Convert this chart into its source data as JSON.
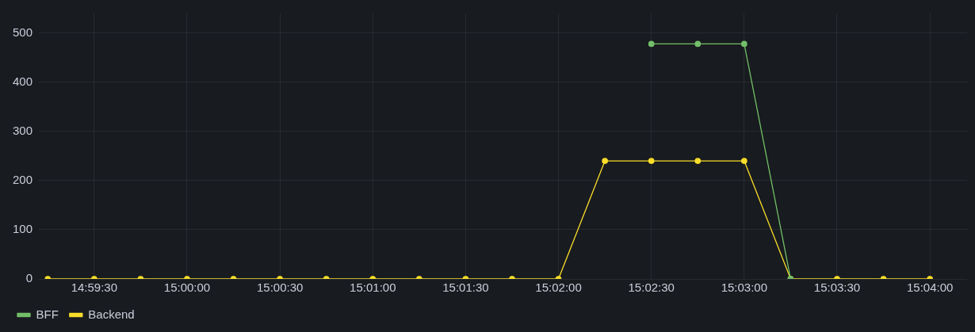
{
  "chart_data": {
    "type": "line",
    "x": [
      14.9875,
      14.991667,
      14.995833,
      15.0,
      15.004167,
      15.008333,
      15.0125,
      15.016667,
      15.020833,
      15.025,
      15.029167,
      15.033333,
      15.0375,
      15.041667,
      15.045833,
      15.05,
      15.054167,
      15.058333,
      15.0625,
      15.066667
    ],
    "series": [
      {
        "name": "BFF",
        "color": "#73bf69",
        "values": [
          null,
          null,
          null,
          null,
          null,
          null,
          null,
          null,
          null,
          null,
          null,
          null,
          null,
          478,
          478,
          478,
          0,
          null,
          null,
          null
        ]
      },
      {
        "name": "Backend",
        "color": "#fade2a",
        "values": [
          0,
          0,
          0,
          0,
          0,
          0,
          0,
          0,
          0,
          0,
          0,
          0,
          240,
          240,
          240,
          240,
          0,
          0,
          0,
          0
        ]
      }
    ],
    "xlim": [
      14.9867,
      15.07
    ],
    "xticks": [
      {
        "value": 14.991667,
        "label": "14:59:30"
      },
      {
        "value": 15.0,
        "label": "15:00:00"
      },
      {
        "value": 15.008333,
        "label": "15:00:30"
      },
      {
        "value": 15.016667,
        "label": "15:01:00"
      },
      {
        "value": 15.025,
        "label": "15:01:30"
      },
      {
        "value": 15.033333,
        "label": "15:02:00"
      },
      {
        "value": 15.041667,
        "label": "15:02:30"
      },
      {
        "value": 15.05,
        "label": "15:03:00"
      },
      {
        "value": 15.058333,
        "label": "15:03:30"
      },
      {
        "value": 15.066667,
        "label": "15:04:00"
      }
    ],
    "ylim": [
      0,
      540
    ],
    "yticks": [
      0,
      100,
      200,
      300,
      400,
      500
    ],
    "grid": true,
    "legend": "bottom left",
    "marker": "circle"
  }
}
